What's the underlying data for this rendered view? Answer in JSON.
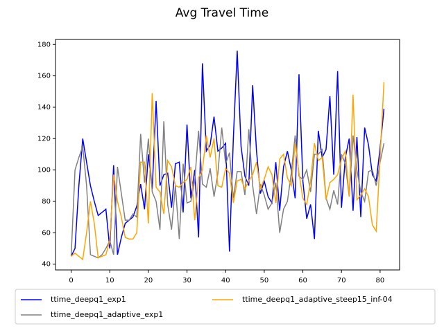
{
  "chart_data": {
    "type": "line",
    "title": "Avg Travel Time",
    "x": [
      0,
      1,
      2,
      3,
      4,
      5,
      6,
      7,
      8,
      9,
      10,
      11,
      12,
      13,
      14,
      15,
      16,
      17,
      18,
      19,
      20,
      21,
      22,
      23,
      24,
      25,
      26,
      27,
      28,
      29,
      30,
      31,
      32,
      33,
      34,
      35,
      36,
      37,
      38,
      39,
      40,
      41,
      42,
      43,
      44,
      45,
      46,
      47,
      48,
      49,
      50,
      51,
      52,
      53,
      54,
      55,
      56,
      57,
      58,
      59,
      60,
      61,
      62,
      63,
      64,
      65,
      66,
      67,
      68,
      69,
      70,
      71,
      72,
      73,
      74,
      75,
      76,
      77,
      78,
      79,
      80,
      81
    ],
    "series": [
      {
        "name": "ttime_deepq1_exp1",
        "color": "#0000ff",
        "values": [
          45,
          50,
          90,
          120,
          105,
          90,
          80,
          71,
          73,
          75,
          50,
          103,
          46,
          57,
          66,
          68,
          70,
          77,
          91,
          75,
          110,
          88,
          144,
          90,
          97,
          98,
          76,
          104,
          105,
          73,
          129,
          82,
          100,
          57,
          168,
          112,
          116,
          134,
          112,
          114,
          117,
          48,
          120,
          176,
          115,
          96,
          90,
          154,
          112,
          85,
          93,
          83,
          79,
          105,
          74,
          102,
          112,
          100,
          82,
          161,
          93,
          69,
          78,
          56,
          125,
          108,
          113,
          147,
          97,
          163,
          76,
          108,
          120,
          74,
          121,
          70,
          127,
          116,
          97,
          93,
          114,
          139
        ]
      },
      {
        "name": "ttime_deepq1_adaptive_exp1",
        "color": "#808080",
        "values": [
          45,
          100,
          108,
          115,
          90,
          46,
          45,
          44,
          46,
          50,
          55,
          46,
          102,
          85,
          68,
          68,
          72,
          70,
          123,
          92,
          120,
          86,
          80,
          62,
          131,
          78,
          62,
          90,
          56,
          104,
          79,
          80,
          93,
          125,
          91,
          89,
          101,
          83,
          98,
          127,
          104,
          111,
          82,
          99,
          99,
          84,
          126,
          90,
          72,
          91,
          84,
          75,
          79,
          92,
          60,
          75,
          80,
          98,
          122,
          96,
          94,
          100,
          86,
          110,
          110,
          113,
          82,
          75,
          87,
          78,
          110,
          104,
          83,
          122,
          100,
          86,
          80,
          99,
          100,
          90,
          105,
          117
        ]
      },
      {
        "name": "ttime_deepq1_adaptive_steep15_inf-04",
        "color": "#ffa500",
        "values": [
          45,
          47,
          45,
          43,
          60,
          80,
          66,
          44,
          45,
          46,
          55,
          97,
          80,
          70,
          57,
          56,
          56,
          60,
          105,
          105,
          66,
          149,
          89,
          86,
          72,
          106,
          102,
          90,
          89,
          92,
          94,
          102,
          68,
          95,
          100,
          122,
          108,
          120,
          90,
          89,
          101,
          98,
          79,
          93,
          94,
          88,
          93,
          97,
          105,
          88,
          94,
          102,
          97,
          79,
          107,
          110,
          95,
          90,
          117,
          98,
          82,
          78,
          93,
          117,
          106,
          108,
          81,
          92,
          94,
          97,
          107,
          112,
          83,
          148,
          81,
          84,
          88,
          83,
          65,
          61,
          108,
          156
        ]
      }
    ],
    "xlim": [
      -4.05,
      85.05
    ],
    "ylim": [
      36.3,
      183.2
    ],
    "xticks": [
      0,
      10,
      20,
      30,
      40,
      50,
      60,
      70,
      80
    ],
    "yticks": [
      40,
      60,
      80,
      100,
      120,
      140,
      160,
      180
    ]
  }
}
